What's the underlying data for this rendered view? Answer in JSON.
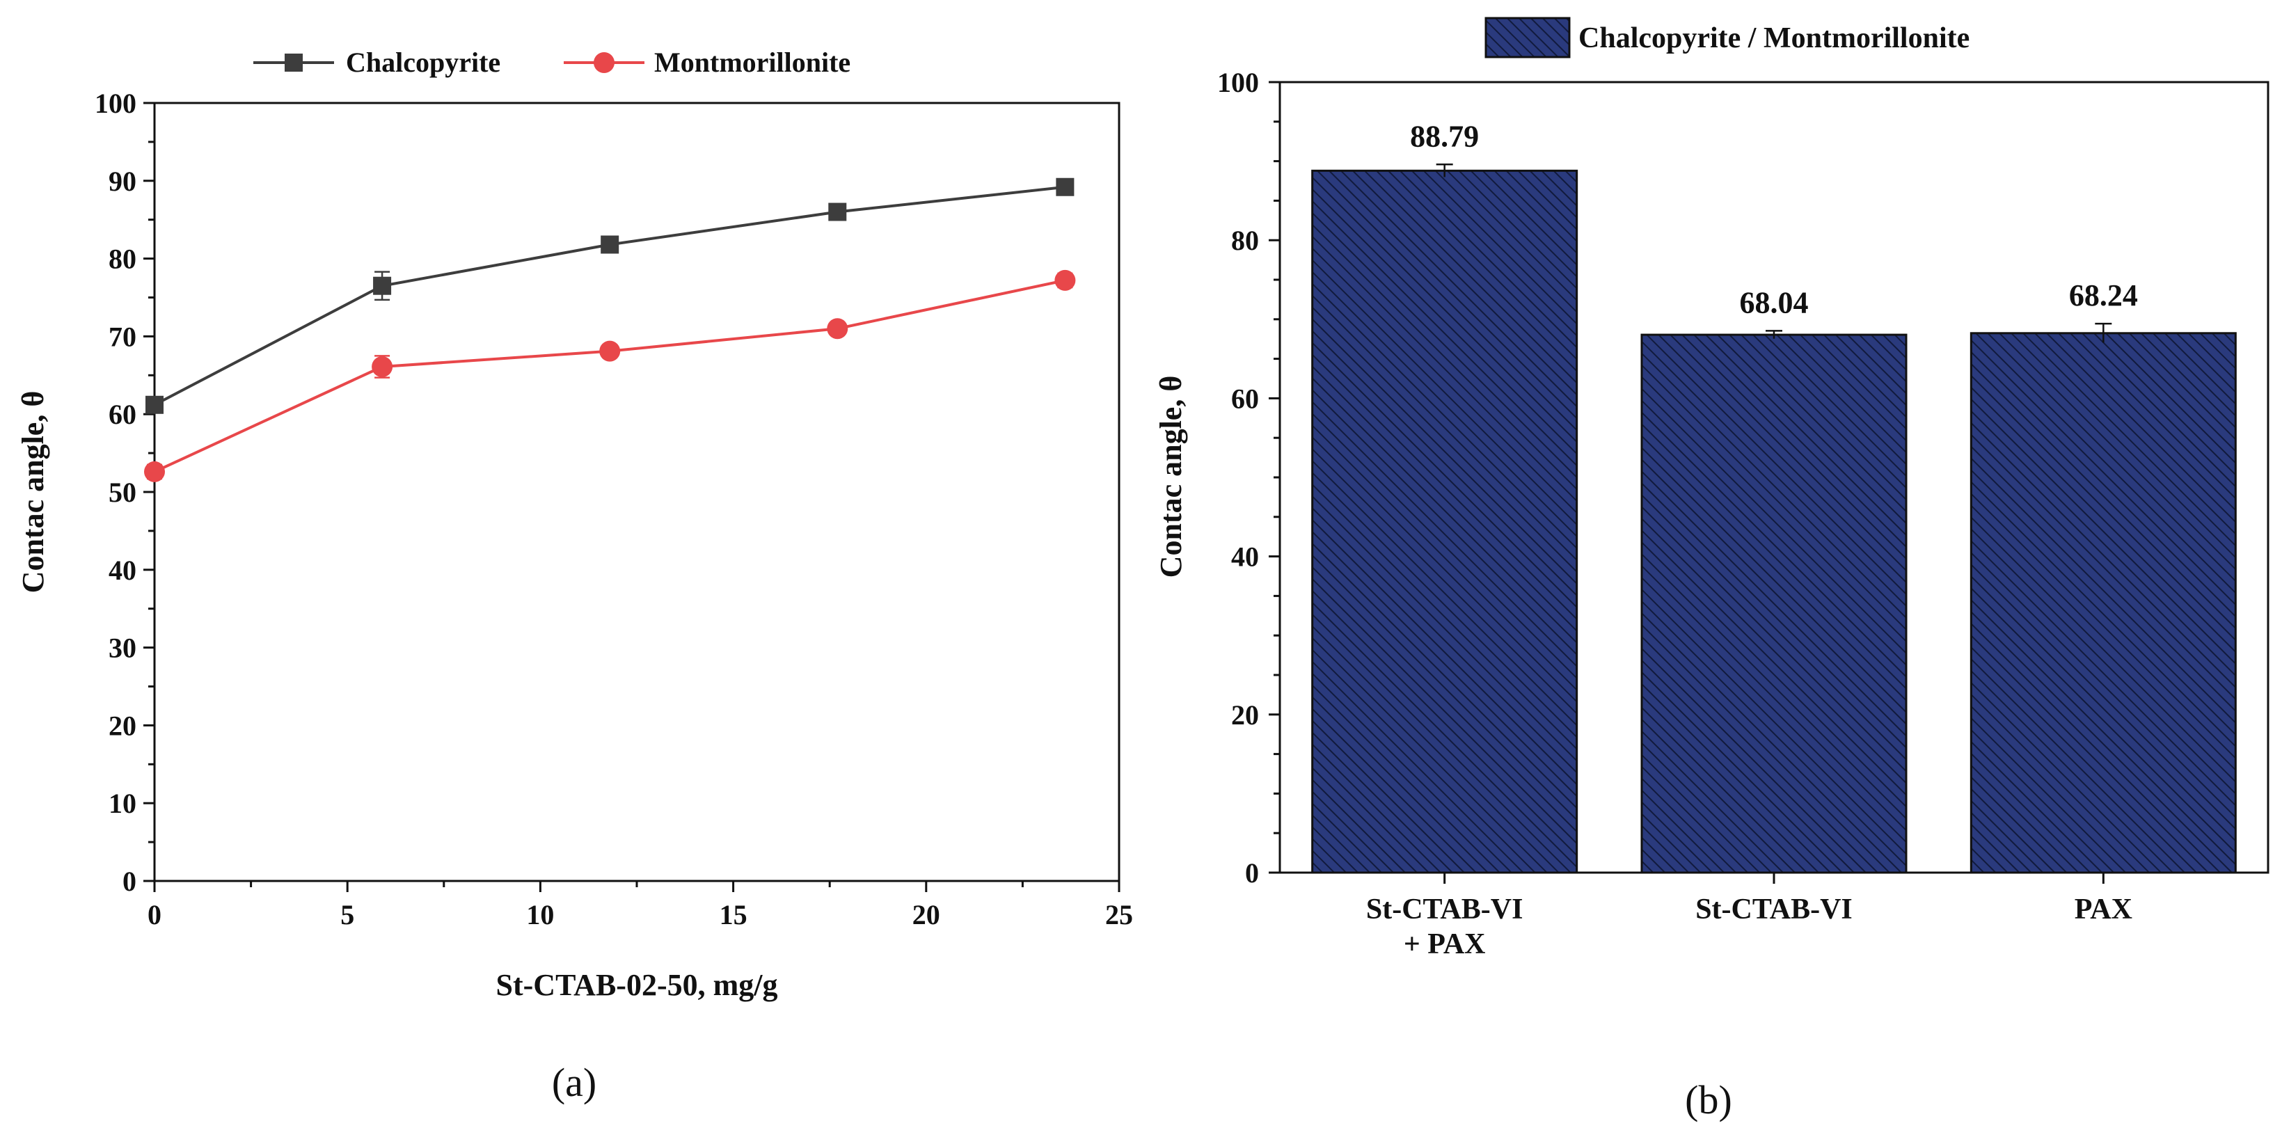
{
  "chart_data": [
    {
      "type": "line",
      "panel_label": "(a)",
      "xlabel": "St-CTAB-02-50, mg/g",
      "ylabel": "Contac angle, θ",
      "xlim": [
        0,
        25
      ],
      "ylim": [
        0,
        100
      ],
      "xticks": [
        0,
        5,
        10,
        15,
        20,
        25
      ],
      "yticks": [
        0,
        10,
        20,
        30,
        40,
        50,
        60,
        70,
        80,
        90,
        100
      ],
      "grid": false,
      "legend_position": "top",
      "series": [
        {
          "name": "Chalcopyrite",
          "color": "#3d3d3d",
          "marker": "square",
          "x": [
            0,
            5.9,
            11.8,
            17.7,
            23.6
          ],
          "values": [
            61.2,
            76.5,
            81.8,
            86.0,
            89.2
          ],
          "errors": [
            0.8,
            1.8,
            0.6,
            0.5,
            0.6
          ]
        },
        {
          "name": "Montmorillonite",
          "color": "#e8474a",
          "marker": "circle",
          "x": [
            0,
            5.9,
            11.8,
            17.7,
            23.6
          ],
          "values": [
            52.6,
            66.1,
            68.1,
            71.0,
            77.2
          ],
          "errors": [
            0.9,
            1.4,
            0.5,
            0.5,
            0.9
          ]
        }
      ]
    },
    {
      "type": "bar",
      "panel_label": "(b)",
      "legend": "Chalcopyrite / Montmorillonite",
      "legend_position": "top",
      "ylabel": "Contac angle, θ",
      "ylim": [
        0,
        100
      ],
      "yticks": [
        0,
        20,
        40,
        60,
        80,
        100
      ],
      "grid": false,
      "bar_color": "#2a3a7d",
      "categories": [
        [
          "St-CTAB-VI",
          "+ PAX"
        ],
        [
          "St-CTAB-VI"
        ],
        [
          "PAX"
        ]
      ],
      "values": [
        88.79,
        68.04,
        68.24
      ],
      "value_labels": [
        "88.79",
        "68.04",
        "68.24"
      ],
      "errors": [
        0.8,
        0.5,
        1.2
      ]
    }
  ]
}
